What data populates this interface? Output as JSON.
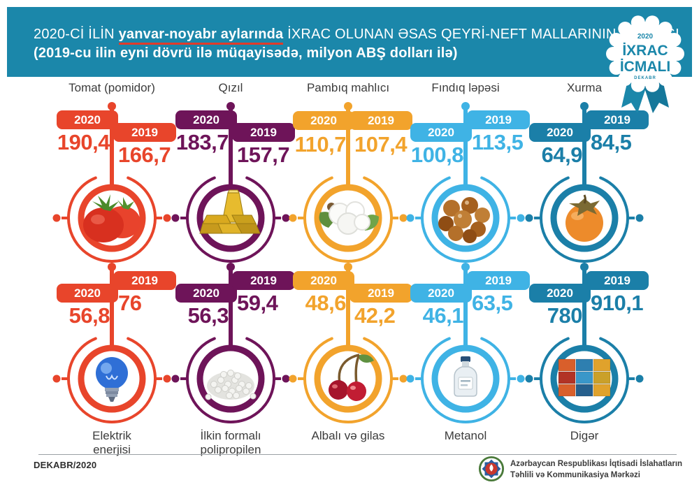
{
  "header": {
    "title_prefix": "2020-Cİ İLİN",
    "title_highlight": "yanvar-noyabr aylarında",
    "title_suffix": "İXRAC OLUNAN ƏSAS QEYRİ-NEFT MALLARININ SİYAHISI",
    "subtitle": "(2019-cu ilin eyni dövrü ilə müqayisədə, milyon ABŞ dolları ilə)",
    "band_color": "#1b87aa",
    "highlight_underline_color": "#e23b2a"
  },
  "badge": {
    "year": "2020",
    "word1": "İXRAC",
    "word2": "İCMALI",
    "month": "DEKABR",
    "text_color": "#1b87aa"
  },
  "labels": {
    "year2020": "2020",
    "year2019": "2019"
  },
  "items": [
    {
      "name": "Tomat (pomidor)",
      "color": "#e8452b",
      "v2020": "190,4",
      "v2019": "166,7",
      "layout": "left-high",
      "icon": "tomatoes",
      "row": 1
    },
    {
      "name": "Qızıl",
      "color": "#6e1459",
      "v2020": "183,7",
      "v2019": "157,7",
      "layout": "left-high",
      "icon": "gold-bars",
      "row": 1
    },
    {
      "name": "Pambıq mahlıcı",
      "color": "#f2a32c",
      "v2020": "110,7",
      "v2019": "107,4",
      "layout": "level",
      "icon": "cotton",
      "row": 1
    },
    {
      "name": "Fındıq ləpəsi",
      "color": "#3fb3e5",
      "v2020": "100,8",
      "v2019": "113,5",
      "layout": "right-high",
      "icon": "hazelnuts",
      "row": 1
    },
    {
      "name": "Xurma",
      "color": "#1b7fa8",
      "v2020": "64,9",
      "v2019": "84,5",
      "layout": "right-high",
      "icon": "persimmon",
      "row": 1
    },
    {
      "name": "Elektrik\nenerjisi",
      "color": "#e8452b",
      "v2020": "56,8",
      "v2019": "76",
      "layout": "right-high",
      "icon": "light-bulb",
      "row": 2
    },
    {
      "name": "İlkin formalı\npolipropilen",
      "color": "#6e1459",
      "v2020": "56,3",
      "v2019": "59,4",
      "layout": "right-high",
      "icon": "granules",
      "row": 2
    },
    {
      "name": "Albalı və gilas",
      "color": "#f2a32c",
      "v2020": "48,6",
      "v2019": "42,2",
      "layout": "left-high",
      "icon": "cherries",
      "row": 2
    },
    {
      "name": "Metanol",
      "color": "#3fb3e5",
      "v2020": "46,1",
      "v2019": "63,5",
      "layout": "right-high",
      "icon": "methanol-bottle",
      "row": 2
    },
    {
      "name": "Digər",
      "color": "#1b7fa8",
      "v2020": "780",
      "v2019": "910,1",
      "layout": "right-high",
      "icon": "containers",
      "row": 2
    }
  ],
  "footer": {
    "date": "DEKABR/2020",
    "org_line1": "Azərbaycan Respublikası İqtisadi İslahatların",
    "org_line2": "Təhlili və Kommunikasiya Mərkəzi"
  },
  "chart_data": {
    "type": "table",
    "title": "2020-ci ilin yanvar-noyabr aylarında ixrac olunan əsas qeyri-neft mallarının siyahısı",
    "subtitle": "2019-cu ilin eyni dövrü ilə müqayisədə, milyon ABŞ dolları ilə",
    "unit": "milyon ABŞ dolları",
    "categories": [
      "Tomat (pomidor)",
      "Qızıl",
      "Pambıq mahlıcı",
      "Fındıq ləpəsi",
      "Xurma",
      "Elektrik enerjisi",
      "İlkin formalı polipropilen",
      "Albalı və gilas",
      "Metanol",
      "Digər"
    ],
    "series": [
      {
        "name": "2020",
        "values": [
          190.4,
          183.7,
          110.7,
          100.8,
          64.9,
          56.8,
          56.3,
          48.6,
          46.1,
          780
        ]
      },
      {
        "name": "2019",
        "values": [
          166.7,
          157.7,
          107.4,
          113.5,
          84.5,
          76,
          59.4,
          42.2,
          63.5,
          910.1
        ]
      }
    ]
  }
}
